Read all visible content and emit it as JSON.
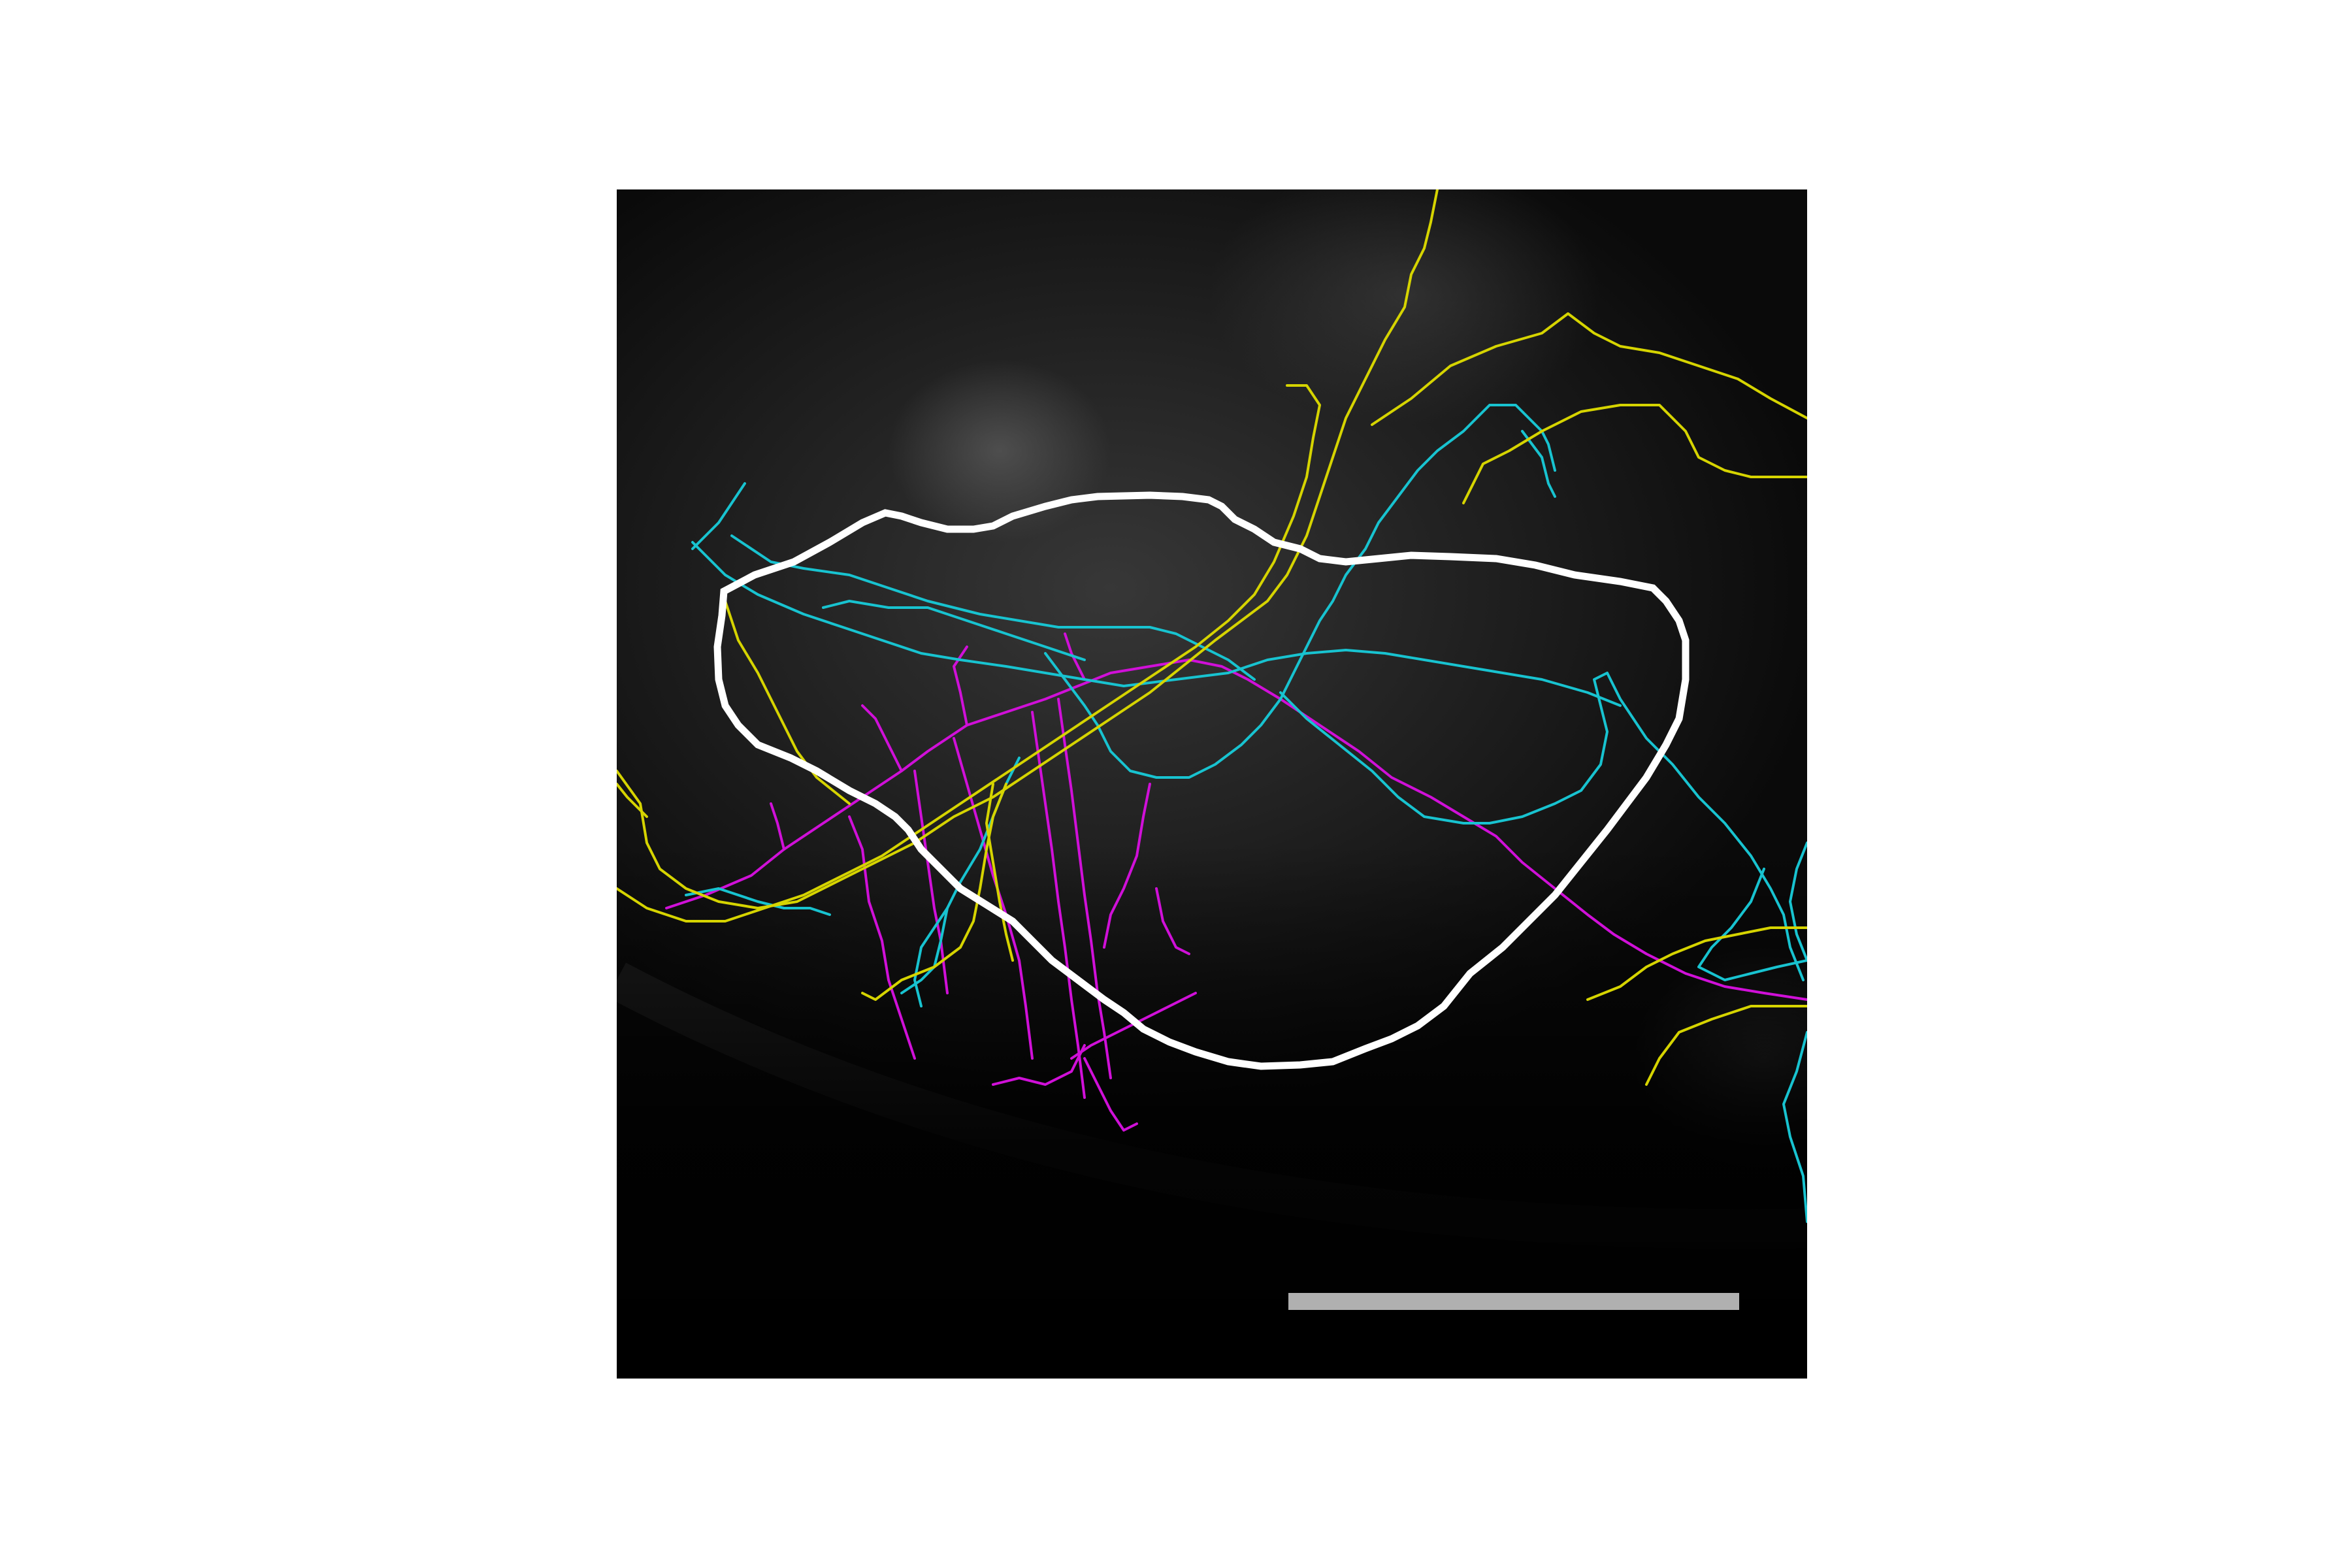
{
  "figure": {
    "background_color": "#ffffff",
    "panel_background": "#0a0a0a",
    "trace_colors": {
      "yellow": "#d6d400",
      "cyan": "#18c3d0",
      "magenta": "#d010d8"
    },
    "region_outline_color": "#ffffff",
    "scale_bar_color": "#b0b0b0"
  }
}
